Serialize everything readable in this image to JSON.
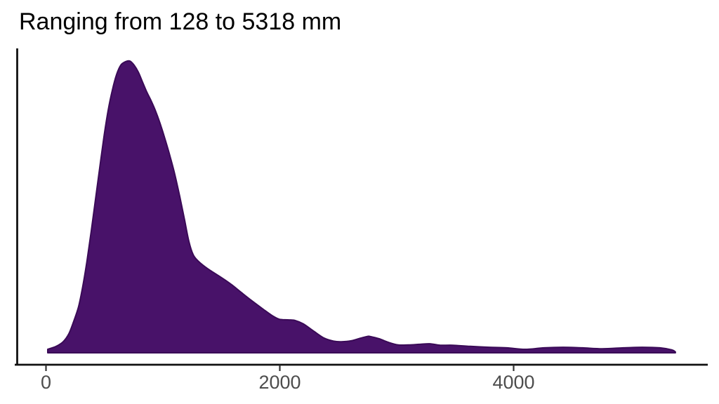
{
  "title": "Ranging from 128 to 5318 mm",
  "colors": {
    "fill": "#481269",
    "stroke": "#3a0a57",
    "axis_line": "#111111",
    "tick_mark": "#333333",
    "tick_label": "#4d4d4d",
    "title": "#000000",
    "background": "#ffffff"
  },
  "chart_data": {
    "type": "area",
    "subtype": "density",
    "title": "Ranging from 128 to 5318 mm",
    "xlabel": "",
    "ylabel": "",
    "x_unit": "mm",
    "data_range": {
      "min": 128,
      "max": 5318,
      "unit": "mm"
    },
    "xlim": [
      -250,
      5660
    ],
    "grid": false,
    "legend": false,
    "y_normalized_to_peak": true,
    "peak_x": 718,
    "x_ticks": [
      {
        "value": 0,
        "label": "0"
      },
      {
        "value": 2000,
        "label": "2000"
      },
      {
        "value": 4000,
        "label": "4000"
      }
    ],
    "points": [
      [
        15,
        0.012
      ],
      [
        87,
        0.022
      ],
      [
        147,
        0.038
      ],
      [
        195,
        0.065
      ],
      [
        237,
        0.108
      ],
      [
        279,
        0.159
      ],
      [
        315,
        0.228
      ],
      [
        351,
        0.315
      ],
      [
        387,
        0.416
      ],
      [
        423,
        0.524
      ],
      [
        459,
        0.632
      ],
      [
        495,
        0.738
      ],
      [
        531,
        0.829
      ],
      [
        568,
        0.901
      ],
      [
        604,
        0.954
      ],
      [
        640,
        0.986
      ],
      [
        682,
        0.998
      ],
      [
        718,
        1.0
      ],
      [
        754,
        0.986
      ],
      [
        790,
        0.962
      ],
      [
        826,
        0.928
      ],
      [
        862,
        0.894
      ],
      [
        898,
        0.865
      ],
      [
        934,
        0.832
      ],
      [
        976,
        0.786
      ],
      [
        1018,
        0.733
      ],
      [
        1060,
        0.675
      ],
      [
        1102,
        0.611
      ],
      [
        1144,
        0.536
      ],
      [
        1186,
        0.454
      ],
      [
        1222,
        0.382
      ],
      [
        1258,
        0.337
      ],
      [
        1300,
        0.315
      ],
      [
        1366,
        0.293
      ],
      [
        1426,
        0.277
      ],
      [
        1511,
        0.255
      ],
      [
        1589,
        0.233
      ],
      [
        1679,
        0.204
      ],
      [
        1769,
        0.176
      ],
      [
        1859,
        0.149
      ],
      [
        1937,
        0.127
      ],
      [
        1997,
        0.115
      ],
      [
        2069,
        0.113
      ],
      [
        2129,
        0.111
      ],
      [
        2201,
        0.099
      ],
      [
        2297,
        0.072
      ],
      [
        2381,
        0.05
      ],
      [
        2460,
        0.04
      ],
      [
        2526,
        0.038
      ],
      [
        2610,
        0.041
      ],
      [
        2688,
        0.05
      ],
      [
        2748,
        0.056
      ],
      [
        2772,
        0.056
      ],
      [
        2850,
        0.048
      ],
      [
        2928,
        0.036
      ],
      [
        3012,
        0.027
      ],
      [
        3102,
        0.027
      ],
      [
        3192,
        0.029
      ],
      [
        3282,
        0.031
      ],
      [
        3372,
        0.026
      ],
      [
        3480,
        0.026
      ],
      [
        3630,
        0.022
      ],
      [
        3792,
        0.019
      ],
      [
        3942,
        0.017
      ],
      [
        4098,
        0.012
      ],
      [
        4260,
        0.017
      ],
      [
        4422,
        0.019
      ],
      [
        4590,
        0.017
      ],
      [
        4758,
        0.014
      ],
      [
        4938,
        0.017
      ],
      [
        5100,
        0.019
      ],
      [
        5252,
        0.017
      ],
      [
        5354,
        0.01
      ],
      [
        5384,
        0.003
      ]
    ]
  }
}
